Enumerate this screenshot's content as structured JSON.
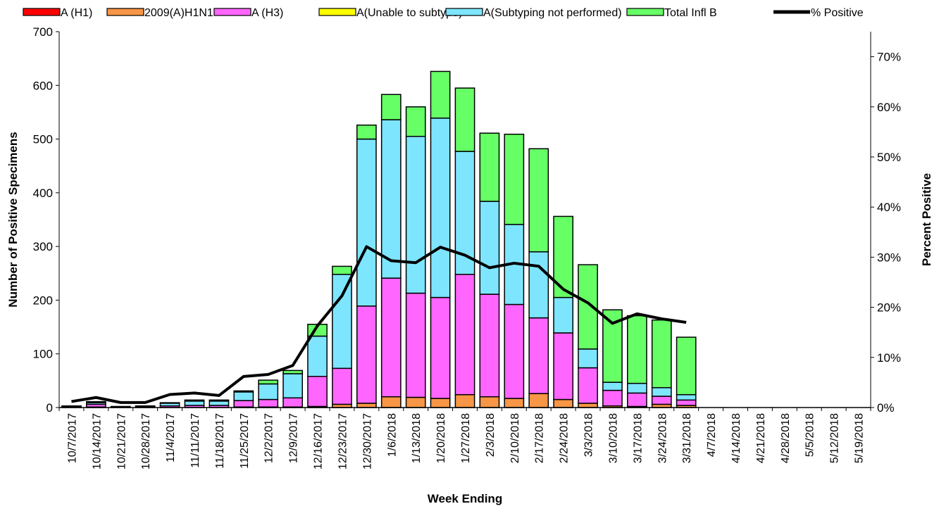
{
  "chart_data": {
    "type": "bar",
    "stacked": true,
    "title": "",
    "xlabel": "Week Ending",
    "ylabel": "Number of  Positive Specimens",
    "y2label": "Percent Positive",
    "ylim": [
      0,
      700
    ],
    "y2lim": [
      0,
      75
    ],
    "yticks": [
      0,
      100,
      200,
      300,
      400,
      500,
      600,
      700
    ],
    "y2ticks": [
      0,
      10,
      20,
      30,
      40,
      50,
      60,
      70
    ],
    "y2tick_labels": [
      "0%",
      "10%",
      "20%",
      "30%",
      "40%",
      "50%",
      "60%",
      "70%"
    ],
    "grid": false,
    "legend_position": "top",
    "categories": [
      "10/7/2017",
      "10/14/2017",
      "10/21/2017",
      "10/28/2017",
      "11/4/2017",
      "11/11/2017",
      "11/18/2017",
      "11/25/2017",
      "12/2/2017",
      "12/9/2017",
      "12/16/2017",
      "12/23/2017",
      "12/30/2017",
      "1/6/2018",
      "1/13/2018",
      "1/20/2018",
      "1/27/2018",
      "2/3/2018",
      "2/10/2018",
      "2/17/2018",
      "2/24/2018",
      "3/3/2018",
      "3/10/2018",
      "3/17/2018",
      "3/24/2018",
      "3/31/2018",
      "4/7/2018",
      "4/14/2018",
      "4/21/2018",
      "4/28/2018",
      "5/5/2018",
      "5/12/2018",
      "5/19/2018"
    ],
    "series": [
      {
        "name": "A (H1)",
        "kind": "bar",
        "color": "#ff0000",
        "values": [
          0,
          0,
          0,
          0,
          0,
          0,
          0,
          0,
          0,
          0,
          0,
          0,
          0,
          0,
          0,
          0,
          0,
          0,
          0,
          0,
          0,
          0,
          0,
          0,
          0,
          0,
          0,
          0,
          0,
          0,
          0,
          0,
          0
        ]
      },
      {
        "name": "2009(A)H1N1",
        "kind": "bar",
        "color": "#f79646",
        "values": [
          0,
          1,
          0,
          0,
          0,
          0,
          0,
          1,
          1,
          1,
          2,
          6,
          8,
          20,
          19,
          17,
          24,
          20,
          17,
          26,
          15,
          8,
          3,
          2,
          6,
          4,
          0,
          0,
          0,
          0,
          0,
          0,
          0
        ]
      },
      {
        "name": "A (H3)",
        "kind": "bar",
        "color": "#ff66ff",
        "values": [
          2,
          5,
          1,
          1,
          3,
          4,
          4,
          12,
          14,
          17,
          56,
          67,
          181,
          221,
          194,
          188,
          224,
          191,
          175,
          141,
          124,
          66,
          29,
          25,
          15,
          10,
          0,
          0,
          0,
          0,
          0,
          0,
          0
        ]
      },
      {
        "name": "A(Unable to subtype)",
        "kind": "bar",
        "color": "#ffff00",
        "values": [
          0,
          0,
          0,
          0,
          0,
          0,
          0,
          0,
          0,
          0,
          0,
          0,
          0,
          0,
          0,
          0,
          0,
          0,
          0,
          0,
          0,
          0,
          0,
          0,
          0,
          0,
          0,
          0,
          0,
          0,
          0,
          0,
          0
        ]
      },
      {
        "name": "A(Subtyping not performed)",
        "kind": "bar",
        "color": "#7ee5ff",
        "values": [
          1,
          3,
          1,
          1,
          5,
          8,
          8,
          16,
          29,
          45,
          75,
          175,
          311,
          295,
          292,
          334,
          229,
          173,
          149,
          123,
          66,
          35,
          15,
          18,
          16,
          10,
          0,
          0,
          0,
          0,
          0,
          0,
          0
        ]
      },
      {
        "name": "Total Infl B",
        "kind": "bar",
        "color": "#66ff66",
        "values": [
          0,
          2,
          0,
          1,
          1,
          2,
          2,
          2,
          7,
          6,
          22,
          15,
          26,
          47,
          55,
          87,
          118,
          127,
          168,
          192,
          151,
          157,
          135,
          126,
          126,
          107,
          0,
          0,
          0,
          0,
          0,
          0,
          0
        ]
      },
      {
        "name": "% Positive",
        "kind": "line",
        "axis": "right",
        "color": "#000000",
        "values": [
          1.2,
          2.0,
          1.0,
          1.0,
          2.6,
          2.9,
          2.4,
          6.2,
          6.6,
          8.4,
          16.3,
          22.3,
          32.1,
          29.3,
          28.9,
          32.0,
          30.4,
          27.9,
          28.8,
          28.2,
          23.6,
          20.9,
          16.8,
          18.7,
          17.7,
          17.0,
          null,
          null,
          null,
          null,
          null,
          null,
          null
        ]
      }
    ]
  }
}
